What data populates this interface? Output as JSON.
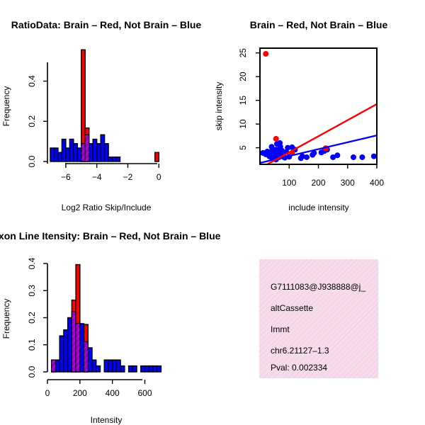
{
  "chart_data": [
    {
      "id": "ratio",
      "type": "histogram-overlay",
      "title": "RatioData: Brain – Red, Not Brain – Blue",
      "xlabel": "Log2 Ratio Skip/Include",
      "ylabel": "Frequency",
      "xlim": [
        -7,
        0.4
      ],
      "ylim": [
        0,
        0.55
      ],
      "xticks": [
        -6,
        -4,
        -2,
        0
      ],
      "xtick_labels": [
        "−6",
        "−4",
        "−2",
        "0"
      ],
      "yticks": [
        0.0,
        0.2,
        0.4
      ],
      "ytick_labels": [
        "0.0",
        "0.2",
        "0.4"
      ],
      "bin_width": 0.25,
      "series": [
        {
          "name": "Not Brain",
          "color": "#0000ff",
          "bins": [
            [
              -7.0,
              0.067
            ],
            [
              -6.75,
              0.067
            ],
            [
              -6.5,
              0.045
            ],
            [
              -6.25,
              0.111
            ],
            [
              -6.0,
              0.067
            ],
            [
              -5.75,
              0.111
            ],
            [
              -5.5,
              0.089
            ],
            [
              -5.25,
              0.067
            ],
            [
              -5.0,
              0.089
            ],
            [
              -4.75,
              0.133
            ],
            [
              -4.5,
              0.089
            ],
            [
              -4.25,
              0.111
            ],
            [
              -4.0,
              0.089
            ],
            [
              -3.75,
              0.133
            ],
            [
              -3.5,
              0.089
            ],
            [
              -3.25,
              0.022
            ],
            [
              -3.0,
              0.022
            ],
            [
              -2.75,
              0.022
            ]
          ]
        },
        {
          "name": "Brain",
          "color": "#ff0000",
          "bins": [
            [
              -5.0,
              0.556
            ],
            [
              -4.75,
              0.167
            ],
            [
              -0.25,
              0.045
            ]
          ]
        }
      ]
    },
    {
      "id": "scatter",
      "type": "scatter",
      "title": "Brain – Red, Not Brain – Blue",
      "xlabel": "include intensity",
      "ylabel": "skip intensity",
      "xlim": [
        0,
        400
      ],
      "ylim": [
        1.5,
        26
      ],
      "xticks": [
        100,
        200,
        300,
        400
      ],
      "xtick_labels": [
        "100",
        "200",
        "300",
        "400"
      ],
      "yticks": [
        5,
        10,
        15,
        20,
        25
      ],
      "ytick_labels": [
        "5",
        "10",
        "15",
        "20",
        "25"
      ],
      "series": [
        {
          "name": "Not Brain",
          "color": "#0000ff",
          "points": [
            [
              10,
              3.9
            ],
            [
              20,
              3.6
            ],
            [
              25,
              4.2
            ],
            [
              30,
              3.8
            ],
            [
              32,
              3.2
            ],
            [
              35,
              4.1
            ],
            [
              38,
              3.0
            ],
            [
              40,
              5.2
            ],
            [
              42,
              3.5
            ],
            [
              45,
              4.6
            ],
            [
              48,
              3.8
            ],
            [
              50,
              3.0
            ],
            [
              52,
              3.9
            ],
            [
              55,
              2.5
            ],
            [
              55,
              4.6
            ],
            [
              58,
              5.8
            ],
            [
              60,
              3.6
            ],
            [
              62,
              4.2
            ],
            [
              65,
              3.0
            ],
            [
              68,
              6.0
            ],
            [
              70,
              5.2
            ],
            [
              72,
              3.8
            ],
            [
              75,
              4.4
            ],
            [
              80,
              3.1
            ],
            [
              85,
              2.9
            ],
            [
              90,
              4.1
            ],
            [
              95,
              5.0
            ],
            [
              100,
              3.1
            ],
            [
              110,
              5.1
            ],
            [
              120,
              4.6
            ],
            [
              140,
              2.8
            ],
            [
              145,
              3.2
            ],
            [
              160,
              3.0
            ],
            [
              180,
              3.5
            ],
            [
              185,
              3.9
            ],
            [
              210,
              4.0
            ],
            [
              220,
              4.3
            ],
            [
              230,
              4.6
            ],
            [
              250,
              3.0
            ],
            [
              265,
              3.4
            ],
            [
              320,
              3.0
            ],
            [
              350,
              3.0
            ],
            [
              390,
              3.2
            ]
          ],
          "fit": [
            [
              0,
              1.8
            ],
            [
              400,
              7.6
            ]
          ]
        },
        {
          "name": "Brain",
          "color": "#ff0000",
          "points": [
            [
              20,
              24.8
            ],
            [
              55,
              6.9
            ],
            [
              110,
              3.9
            ],
            [
              225,
              4.9
            ]
          ],
          "fit": [
            [
              25,
              1.5
            ],
            [
              400,
              14.2
            ]
          ]
        }
      ]
    },
    {
      "id": "intensity",
      "type": "histogram-overlay",
      "title": "Exon Line Itensity: Brain – Red, Not Brain – Blue",
      "xlabel": "Intensity",
      "ylabel": "Frequency",
      "xlim": [
        0,
        720
      ],
      "ylim": [
        0,
        0.4
      ],
      "xticks": [
        0,
        200,
        400,
        600
      ],
      "xtick_labels": [
        "0",
        "200",
        "400",
        "600"
      ],
      "yticks": [
        0.0,
        0.1,
        0.2,
        0.3,
        0.4
      ],
      "ytick_labels": [
        "0.0",
        "0.1",
        "0.2",
        "0.3",
        "0.4"
      ],
      "bin_width": 25,
      "series": [
        {
          "name": "Not Brain",
          "color": "#0000ff",
          "bins": [
            [
              25,
              0.044
            ],
            [
              50,
              0.044
            ],
            [
              75,
              0.133
            ],
            [
              100,
              0.155
            ],
            [
              125,
              0.2
            ],
            [
              150,
              0.222
            ],
            [
              175,
              0.178
            ],
            [
              200,
              0.178
            ],
            [
              225,
              0.111
            ],
            [
              250,
              0.089
            ],
            [
              275,
              0.044
            ],
            [
              300,
              0.022
            ],
            [
              350,
              0.044
            ],
            [
              375,
              0.044
            ],
            [
              400,
              0.044
            ],
            [
              425,
              0.044
            ],
            [
              450,
              0.022
            ],
            [
              500,
              0.022
            ],
            [
              525,
              0.022
            ],
            [
              575,
              0.022
            ],
            [
              600,
              0.022
            ],
            [
              625,
              0.022
            ],
            [
              650,
              0.022
            ],
            [
              675,
              0.022
            ]
          ]
        },
        {
          "name": "Brain",
          "color": "#ff0000",
          "bins": [
            [
              25,
              0.044
            ],
            [
              150,
              0.265
            ],
            [
              175,
              0.396
            ],
            [
              225,
              0.175
            ]
          ]
        }
      ]
    }
  ],
  "info_box": {
    "bg": "#f4d4e6",
    "lines": [
      "G7111083@J938888@j_",
      "altCassette",
      "Immt",
      "chr6.21127–1.3"
    ],
    "pval": "Pval: 0.002334",
    "pval_color": "#b30000"
  },
  "colors": {
    "blue": "#0000ff",
    "red": "#ff0000",
    "overlap": "#9900cc"
  }
}
